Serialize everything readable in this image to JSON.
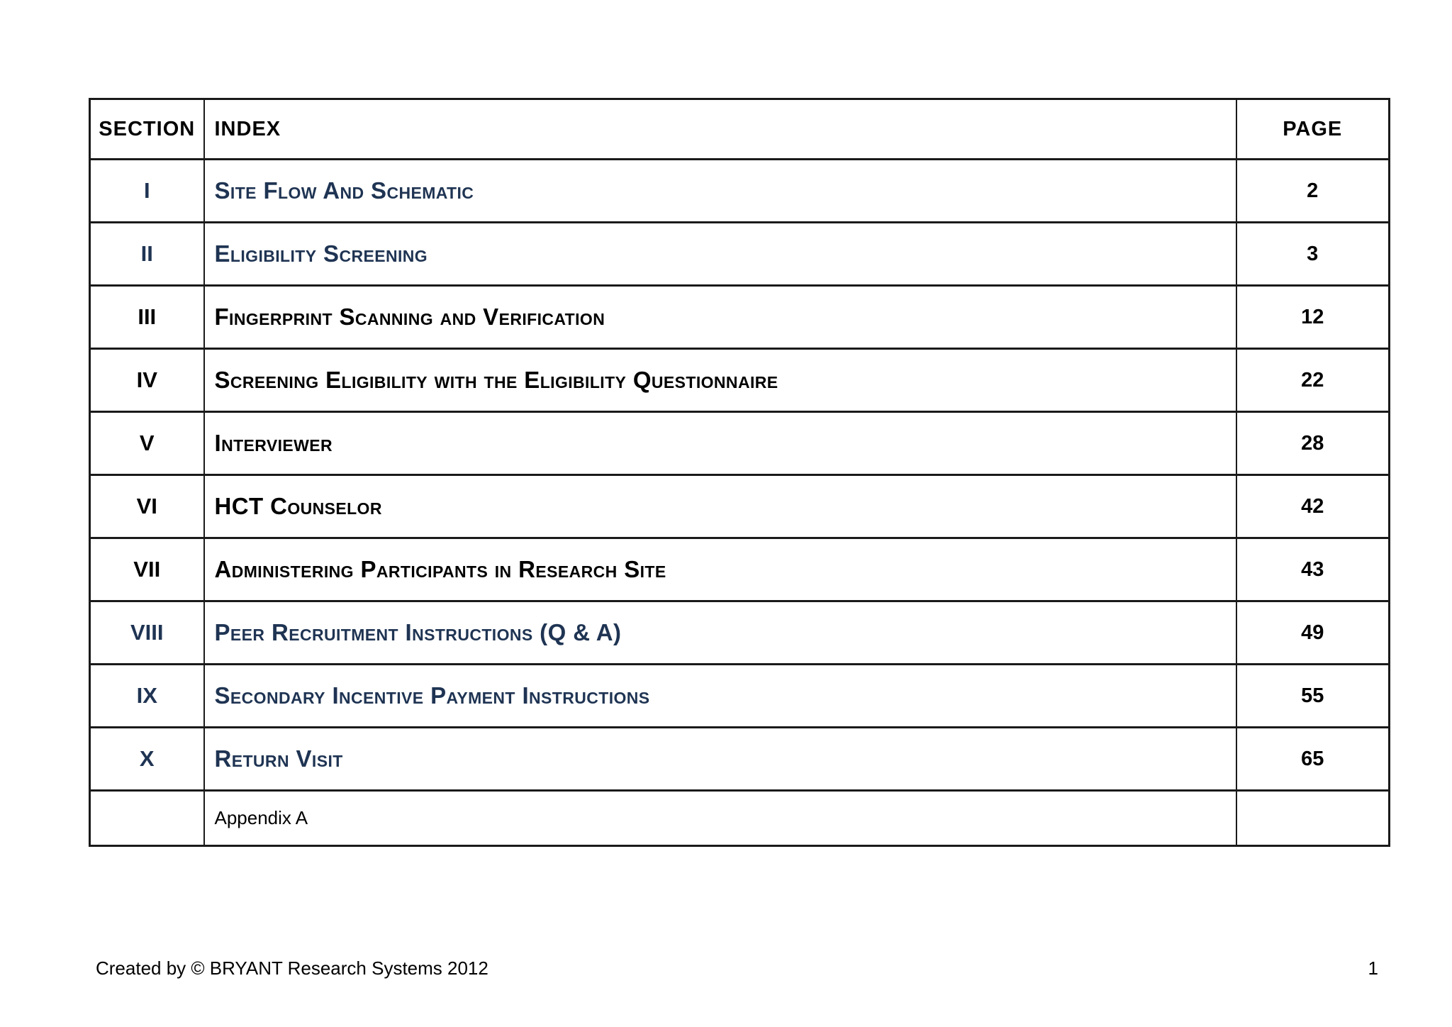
{
  "colors": {
    "navy": "#1f3453",
    "black": "#000000",
    "border": "#1a1a1a",
    "page_background": "#ffffff"
  },
  "table": {
    "headers": {
      "section": "SECTION",
      "index": "INDEX",
      "page": "PAGE"
    },
    "rows": [
      {
        "section": "I",
        "title": "Site Flow And Schematic",
        "page": "2",
        "color": "navy",
        "style": "smallcaps"
      },
      {
        "section": "II",
        "title": "Eligibility Screening",
        "page": "3",
        "color": "navy",
        "style": "smallcaps"
      },
      {
        "section": "III",
        "title": "Fingerprint Scanning and Verification",
        "page": "12",
        "color": "black",
        "style": "smallcaps"
      },
      {
        "section": "IV",
        "title": "Screening Eligibility with the Eligibility Questionnaire",
        "page": "22",
        "color": "black",
        "style": "smallcaps"
      },
      {
        "section": "V",
        "title": "Interviewer",
        "page": "28",
        "color": "black",
        "style": "smallcaps"
      },
      {
        "section": "VI",
        "title": "HCT Counselor",
        "page": "42",
        "color": "black",
        "style": "smallcaps"
      },
      {
        "section": "VII",
        "title": "Administering Participants in Research Site",
        "page": "43",
        "color": "black",
        "style": "smallcaps"
      },
      {
        "section": "VIII",
        "title": "Peer Recruitment Instructions (Q & A)",
        "page": "49",
        "color": "navy",
        "style": "smallcaps"
      },
      {
        "section": "IX",
        "title": "Secondary Incentive Payment Instructions",
        "page": "55",
        "color": "navy",
        "style": "smallcaps"
      },
      {
        "section": "X",
        "title": "Return Visit",
        "page": "65",
        "color": "navy",
        "style": "smallcaps"
      },
      {
        "section": "",
        "title": "Appendix A",
        "page": "",
        "color": "black",
        "style": "plain"
      }
    ]
  },
  "footer": {
    "credit": "Created by © BRYANT Research Systems 2012",
    "page_number": "1"
  }
}
